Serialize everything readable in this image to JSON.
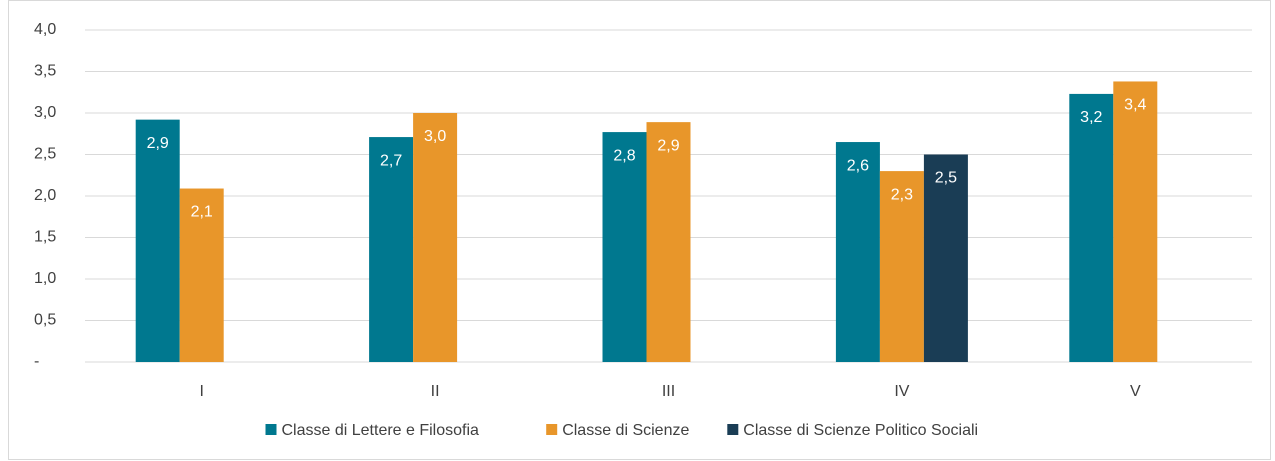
{
  "chart_data": {
    "type": "bar",
    "categories": [
      "I",
      "II",
      "III",
      "IV",
      "V"
    ],
    "series": [
      {
        "name": "Classe di Lettere e Filosofia",
        "color": "#00788f",
        "values": [
          2.92,
          2.71,
          2.77,
          2.65,
          3.23
        ],
        "value_labels": [
          "2,9",
          "2,7",
          "2,8",
          "2,6",
          "3,2"
        ]
      },
      {
        "name": "Classe di Scienze",
        "color": "#e8962a",
        "values": [
          2.09,
          3.0,
          2.89,
          2.3,
          3.38
        ],
        "value_labels": [
          "2,1",
          "3,0",
          "2,9",
          "2,3",
          "3,4"
        ]
      },
      {
        "name": "Classe di Scienze Politico Sociali",
        "color": "#1a3d55",
        "values": [
          null,
          null,
          null,
          2.5,
          null
        ],
        "value_labels": [
          null,
          null,
          null,
          "2,5",
          null
        ]
      }
    ],
    "ylim": [
      0,
      4
    ],
    "yticks": [
      {
        "value": 0,
        "label": "-"
      },
      {
        "value": 0.5,
        "label": "0,5"
      },
      {
        "value": 1,
        "label": "1,0"
      },
      {
        "value": 1.5,
        "label": "1,5"
      },
      {
        "value": 2,
        "label": "2,0"
      },
      {
        "value": 2.5,
        "label": "2,5"
      },
      {
        "value": 3,
        "label": "3,0"
      },
      {
        "value": 3.5,
        "label": "3,5"
      },
      {
        "value": 4,
        "label": "4,0"
      }
    ],
    "grid": true,
    "legend": "bottom"
  }
}
